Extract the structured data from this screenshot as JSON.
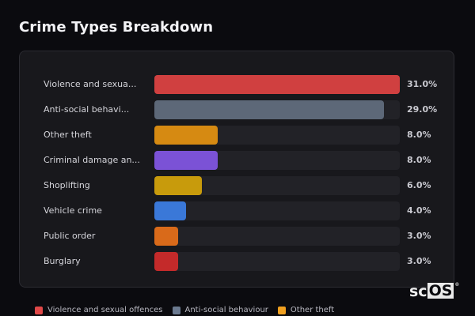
{
  "header": {
    "title": "Crime Types Breakdown"
  },
  "chart_data": {
    "type": "bar",
    "orientation": "horizontal",
    "title": "Crime Types Breakdown",
    "xlabel": "",
    "ylabel": "",
    "value_format": "percent",
    "categories": [
      "Violence and sexual offences",
      "Anti-social behaviour",
      "Other theft",
      "Criminal damage and arson",
      "Shoplifting",
      "Vehicle crime",
      "Public order",
      "Burglary"
    ],
    "display_labels": [
      "Violence and sexua...",
      "Anti-social behavi...",
      "Other theft",
      "Criminal damage an...",
      "Shoplifting",
      "Vehicle crime",
      "Public order",
      "Burglary"
    ],
    "values": [
      31.0,
      29.0,
      8.0,
      8.0,
      6.0,
      4.0,
      3.0,
      3.0
    ],
    "value_labels": [
      "31.0%",
      "29.0%",
      "8.0%",
      "8.0%",
      "6.0%",
      "4.0%",
      "3.0%",
      "3.0%"
    ],
    "colors": [
      "#d04040",
      "#5d6878",
      "#d68a12",
      "#7b52d6",
      "#c89b0c",
      "#3a78d8",
      "#d96a1a",
      "#c42a2a"
    ],
    "xlim": [
      0,
      31.0
    ],
    "grid": false,
    "legend_position": "bottom"
  },
  "legend": {
    "items": [
      {
        "label": "Violence and sexual offences",
        "color": "#e04848"
      },
      {
        "label": "Anti-social behaviour",
        "color": "#6b7a90"
      },
      {
        "label": "Other theft",
        "color": "#f0a020"
      }
    ]
  },
  "watermark": {
    "sc": "sc",
    "os": "OS",
    "reg": "®"
  }
}
